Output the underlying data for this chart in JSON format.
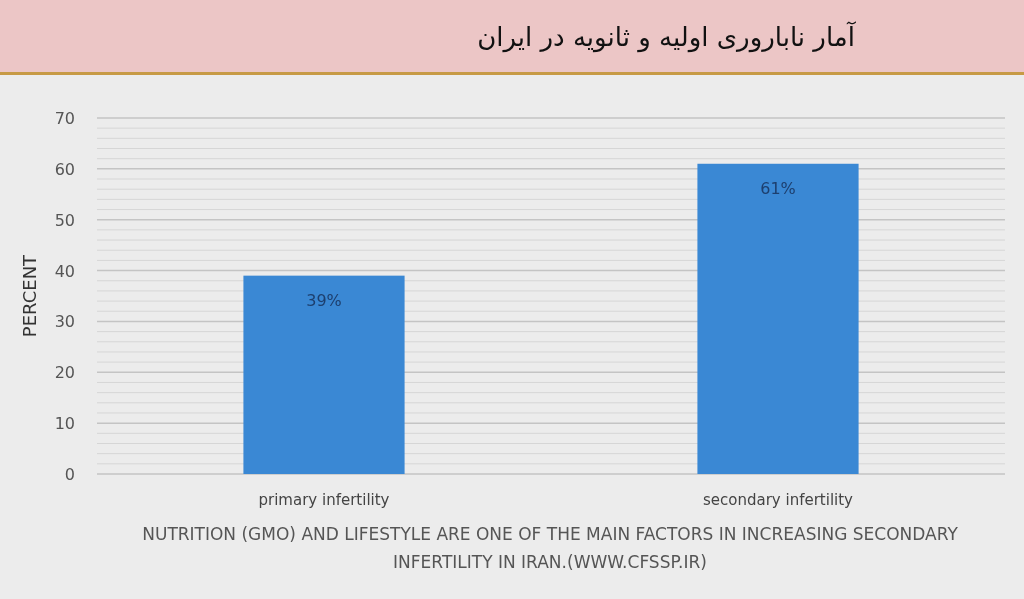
{
  "chart_data": {
    "type": "bar",
    "title": "آمار ناباروری اولیه و ثانویه در ایران",
    "categories": [
      "primary infertility",
      "secondary infertility"
    ],
    "values": [
      39,
      61
    ],
    "value_labels": [
      "39%",
      "61%"
    ],
    "color": "#3a88d4",
    "ylabel": "PERCENT",
    "xlabel": "NUTRITION (GMO) AND LIFESTYLE ARE ONE OF THE MAIN FACTORS IN INCREASING SECONDARY INFERTILITY IN IRAN.(WWW.CFSSP.IR)",
    "ylim": [
      0,
      70
    ],
    "yticks": [
      0,
      10,
      20,
      30,
      40,
      50,
      60,
      70
    ],
    "grid": true
  }
}
